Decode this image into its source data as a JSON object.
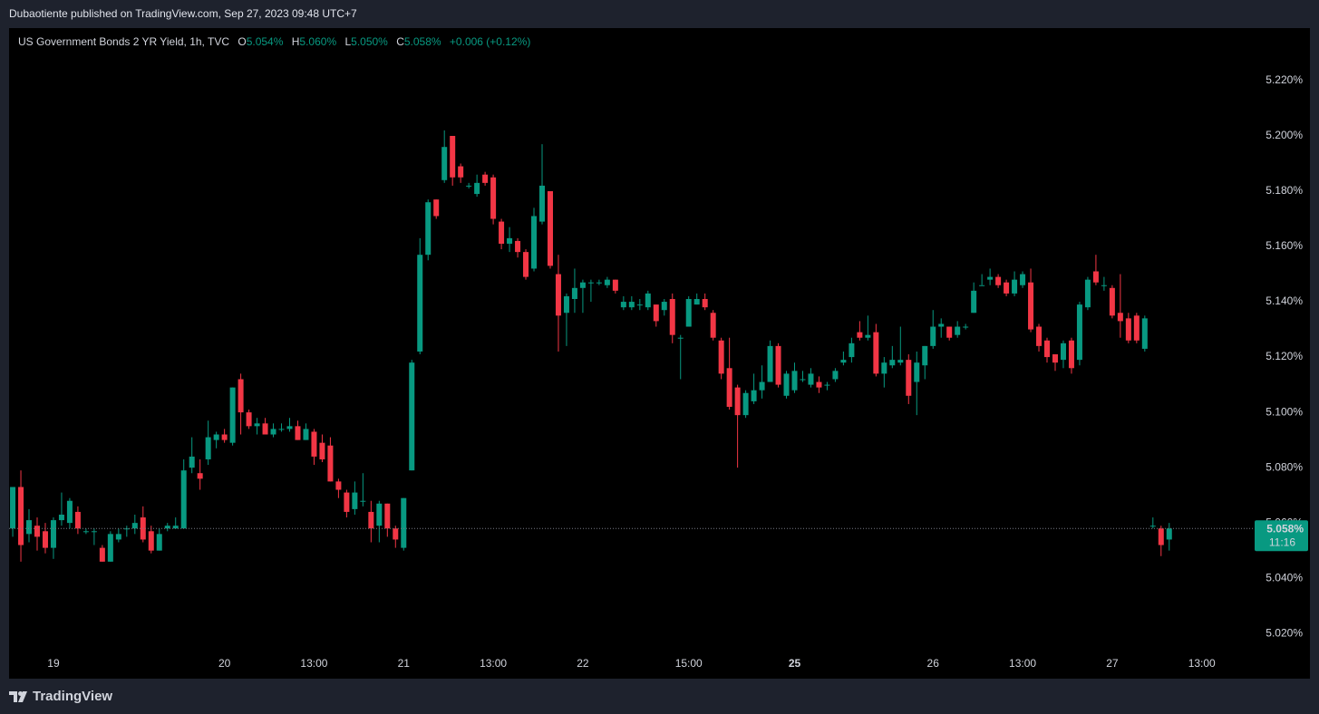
{
  "header": {
    "publisher": "Dubaotiente published on TradingView.com, Sep 27, 2023 09:48 UTC+7"
  },
  "footer": {
    "brand": "TradingView"
  },
  "chart_data": {
    "type": "candlestick",
    "title": "US Government Bonds 2 YR Yield, 1h, TVC",
    "legend": [
      {
        "label": "O",
        "value": "5.054%"
      },
      {
        "label": "H",
        "value": "5.060%"
      },
      {
        "label": "L",
        "value": "5.050%"
      },
      {
        "label": "C",
        "value": "5.058%"
      }
    ],
    "change": "+0.006 (+0.12%)",
    "up_color": "#089981",
    "down_color": "#f23645",
    "grid": false,
    "x": [
      0,
      1,
      2,
      3,
      4,
      5,
      6,
      7,
      8,
      9,
      10,
      11,
      12,
      13,
      14,
      15,
      16,
      17,
      18,
      19,
      20,
      21,
      22,
      23,
      24,
      25,
      26,
      27,
      28,
      29,
      30,
      31,
      32,
      33,
      34,
      35,
      36,
      37,
      38,
      39,
      40,
      41,
      42,
      43,
      44,
      45,
      46,
      47,
      48,
      49,
      50,
      51,
      52,
      53,
      54,
      55,
      56,
      57,
      58,
      59,
      60,
      61,
      62,
      63,
      64,
      65,
      66,
      67,
      68,
      69,
      70,
      71,
      72,
      73,
      74,
      75,
      76,
      77,
      78,
      79,
      80,
      81,
      82,
      83,
      84,
      85,
      86,
      87,
      88,
      89,
      90,
      91,
      92,
      93,
      94,
      95,
      96,
      97,
      98,
      99,
      100,
      101,
      102,
      103,
      104,
      105,
      106,
      107,
      108,
      109,
      110,
      111,
      112,
      113,
      114,
      115,
      116,
      117,
      118,
      119,
      120,
      121,
      122,
      123,
      124,
      125,
      126,
      127,
      128,
      129,
      130,
      131,
      132,
      133,
      134,
      135,
      136,
      137,
      138,
      139,
      140,
      141,
      142
    ],
    "open": [
      5.058,
      5.073,
      5.056,
      5.059,
      5.057,
      5.051,
      5.061,
      5.06,
      5.064,
      5.057,
      5.057,
      5.051,
      5.046,
      5.054,
      5.058,
      5.058,
      5.062,
      5.057,
      5.05,
      5.058,
      5.058,
      5.058,
      5.08,
      5.078,
      5.083,
      5.09,
      5.092,
      5.089,
      5.112,
      5.1,
      5.095,
      5.096,
      5.092,
      5.094,
      5.094,
      5.095,
      5.09,
      5.093,
      5.089,
      5.088,
      5.075,
      5.071,
      5.065,
      5.068,
      5.064,
      5.059,
      5.067,
      5.058,
      5.051,
      5.079,
      5.122,
      5.157,
      5.177,
      5.184,
      5.2,
      5.189,
      5.182,
      5.179,
      5.186,
      5.185,
      5.169,
      5.161,
      5.162,
      5.158,
      5.152,
      5.169,
      5.18,
      5.15,
      5.136,
      5.141,
      5.145,
      5.147,
      5.147,
      5.146,
      5.148,
      5.138,
      5.138,
      5.139,
      5.138,
      5.139,
      5.137,
      5.141,
      5.127,
      5.131,
      5.139,
      5.141,
      5.136,
      5.126,
      5.116,
      5.109,
      5.099,
      5.104,
      5.108,
      5.111,
      5.124,
      5.106,
      5.108,
      5.112,
      5.11,
      5.111,
      5.11,
      5.112,
      5.118,
      5.12,
      5.129,
      5.127,
      5.129,
      5.114,
      5.117,
      5.118,
      5.119,
      5.111,
      5.117,
      5.124,
      5.131,
      5.131,
      5.128,
      5.131,
      5.136,
      5.146,
      5.148,
      5.149,
      5.147,
      5.143,
      5.146,
      5.147,
      5.131,
      5.126,
      5.121,
      5.119,
      5.126,
      5.119,
      5.138,
      5.151,
      5.146,
      5.145,
      5.136,
      5.134,
      5.135,
      5.123,
      5.059,
      5.058,
      5.054
    ],
    "high": [
      5.073,
      5.079,
      5.065,
      5.062,
      5.06,
      5.062,
      5.071,
      5.069,
      5.066,
      5.058,
      5.058,
      5.052,
      5.057,
      5.058,
      5.059,
      5.063,
      5.066,
      5.059,
      5.058,
      5.06,
      5.062,
      5.083,
      5.091,
      5.083,
      5.097,
      5.093,
      5.094,
      5.109,
      5.114,
      5.101,
      5.098,
      5.098,
      5.096,
      5.096,
      5.098,
      5.097,
      5.096,
      5.094,
      5.092,
      5.091,
      5.076,
      5.072,
      5.075,
      5.078,
      5.068,
      5.068,
      5.067,
      5.059,
      5.069,
      5.119,
      5.163,
      5.177,
      5.177,
      5.202,
      5.2,
      5.19,
      5.183,
      5.186,
      5.187,
      5.186,
      5.17,
      5.167,
      5.163,
      5.159,
      5.174,
      5.197,
      5.18,
      5.157,
      5.143,
      5.152,
      5.148,
      5.148,
      5.148,
      5.149,
      5.148,
      5.142,
      5.142,
      5.141,
      5.144,
      5.139,
      5.141,
      5.143,
      5.128,
      5.142,
      5.143,
      5.143,
      5.137,
      5.127,
      5.127,
      5.11,
      5.108,
      5.114,
      5.117,
      5.126,
      5.125,
      5.115,
      5.118,
      5.115,
      5.116,
      5.113,
      5.111,
      5.116,
      5.122,
      5.127,
      5.133,
      5.135,
      5.132,
      5.12,
      5.124,
      5.131,
      5.121,
      5.122,
      5.124,
      5.137,
      5.134,
      5.131,
      5.133,
      5.132,
      5.147,
      5.15,
      5.152,
      5.15,
      5.148,
      5.151,
      5.151,
      5.152,
      5.132,
      5.127,
      5.121,
      5.126,
      5.127,
      5.14,
      5.149,
      5.157,
      5.149,
      5.146,
      5.15,
      5.136,
      5.136,
      5.135,
      5.062,
      5.059,
      5.06
    ],
    "low": [
      5.055,
      5.046,
      5.053,
      5.05,
      5.049,
      5.047,
      5.059,
      5.058,
      5.056,
      5.056,
      5.052,
      5.046,
      5.046,
      5.053,
      5.055,
      5.056,
      5.053,
      5.049,
      5.05,
      5.057,
      5.058,
      5.058,
      5.078,
      5.072,
      5.081,
      5.087,
      5.089,
      5.088,
      5.092,
      5.094,
      5.092,
      5.092,
      5.091,
      5.093,
      5.093,
      5.09,
      5.09,
      5.081,
      5.082,
      5.075,
      5.069,
      5.062,
      5.063,
      5.066,
      5.053,
      5.053,
      5.055,
      5.051,
      5.05,
      5.079,
      5.121,
      5.155,
      5.17,
      5.183,
      5.182,
      5.183,
      5.181,
      5.178,
      5.182,
      5.168,
      5.159,
      5.158,
      5.156,
      5.148,
      5.151,
      5.168,
      5.152,
      5.122,
      5.124,
      5.136,
      5.136,
      5.14,
      5.146,
      5.145,
      5.143,
      5.137,
      5.137,
      5.137,
      5.137,
      5.131,
      5.135,
      5.125,
      5.112,
      5.131,
      5.139,
      5.137,
      5.126,
      5.112,
      5.101,
      5.08,
      5.098,
      5.103,
      5.105,
      5.111,
      5.109,
      5.105,
      5.107,
      5.111,
      5.109,
      5.107,
      5.108,
      5.111,
      5.117,
      5.118,
      5.126,
      5.126,
      5.113,
      5.109,
      5.116,
      5.117,
      5.103,
      5.099,
      5.112,
      5.123,
      5.127,
      5.126,
      5.127,
      5.13,
      5.136,
      5.146,
      5.146,
      5.145,
      5.142,
      5.142,
      5.145,
      5.129,
      5.122,
      5.118,
      5.115,
      5.116,
      5.114,
      5.117,
      5.137,
      5.146,
      5.144,
      5.134,
      5.127,
      5.125,
      5.125,
      5.122,
      5.058,
      5.048,
      5.05
    ],
    "close": [
      5.073,
      5.052,
      5.061,
      5.055,
      5.051,
      5.061,
      5.063,
      5.068,
      5.058,
      5.057,
      5.057,
      5.046,
      5.056,
      5.056,
      5.058,
      5.06,
      5.054,
      5.05,
      5.056,
      5.059,
      5.059,
      5.079,
      5.084,
      5.076,
      5.091,
      5.092,
      5.09,
      5.109,
      5.1,
      5.095,
      5.096,
      5.092,
      5.094,
      5.094,
      5.095,
      5.09,
      5.094,
      5.084,
      5.083,
      5.075,
      5.072,
      5.064,
      5.071,
      5.068,
      5.058,
      5.067,
      5.058,
      5.054,
      5.069,
      5.118,
      5.157,
      5.176,
      5.171,
      5.196,
      5.185,
      5.185,
      5.182,
      5.183,
      5.183,
      5.17,
      5.161,
      5.163,
      5.158,
      5.149,
      5.171,
      5.182,
      5.153,
      5.135,
      5.142,
      5.145,
      5.147,
      5.147,
      5.147,
      5.148,
      5.144,
      5.14,
      5.14,
      5.139,
      5.143,
      5.133,
      5.14,
      5.128,
      5.127,
      5.141,
      5.141,
      5.138,
      5.127,
      5.114,
      5.102,
      5.099,
      5.107,
      5.108,
      5.111,
      5.124,
      5.11,
      5.114,
      5.115,
      5.112,
      5.114,
      5.109,
      5.11,
      5.115,
      5.119,
      5.125,
      5.127,
      5.128,
      5.114,
      5.118,
      5.119,
      5.119,
      5.106,
      5.118,
      5.124,
      5.131,
      5.132,
      5.127,
      5.131,
      5.131,
      5.144,
      5.146,
      5.149,
      5.146,
      5.143,
      5.148,
      5.15,
      5.13,
      5.124,
      5.12,
      5.118,
      5.125,
      5.116,
      5.139,
      5.148,
      5.147,
      5.146,
      5.135,
      5.133,
      5.126,
      5.126,
      5.134,
      5.059,
      5.052,
      5.058
    ],
    "xlim": [
      -0.45,
      152.6
    ],
    "xticks": [
      {
        "value": 5,
        "label": "19"
      },
      {
        "value": 26,
        "label": "20"
      },
      {
        "value": 37,
        "label": "13:00"
      },
      {
        "value": 48,
        "label": "21"
      },
      {
        "value": 59,
        "label": "13:00"
      },
      {
        "value": 70,
        "label": "22"
      },
      {
        "value": 83,
        "label": "15:00"
      },
      {
        "value": 96,
        "label": "25",
        "bold": true
      },
      {
        "value": 113,
        "label": "26"
      },
      {
        "value": 124,
        "label": "13:00"
      },
      {
        "value": 135,
        "label": "27"
      },
      {
        "value": 146,
        "label": "13:00"
      }
    ],
    "ylim": [
      5.004,
      5.239
    ],
    "yticks": [
      {
        "value": 5.02,
        "label": "5.020%"
      },
      {
        "value": 5.04,
        "label": "5.040%"
      },
      {
        "value": 5.06,
        "label": "5.060%"
      },
      {
        "value": 5.08,
        "label": "5.080%"
      },
      {
        "value": 5.1,
        "label": "5.100%"
      },
      {
        "value": 5.12,
        "label": "5.120%"
      },
      {
        "value": 5.14,
        "label": "5.140%"
      },
      {
        "value": 5.16,
        "label": "5.160%"
      },
      {
        "value": 5.18,
        "label": "5.180%"
      },
      {
        "value": 5.2,
        "label": "5.200%"
      },
      {
        "value": 5.22,
        "label": "5.220%"
      }
    ],
    "last_price": {
      "value": 5.058,
      "label": "5.058%",
      "countdown": "11:16"
    }
  }
}
